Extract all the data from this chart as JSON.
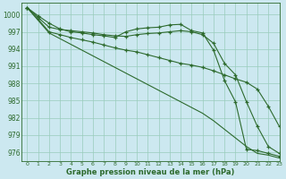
{
  "background_color": "#cce8f0",
  "grid_color": "#99ccbb",
  "line_color": "#2d6a2d",
  "title": "Graphe pression niveau de la mer (hPa)",
  "ylim": [
    974.5,
    1002
  ],
  "xlim": [
    -0.5,
    23
  ],
  "yticks": [
    976,
    979,
    982,
    985,
    988,
    991,
    994,
    997,
    1000
  ],
  "xticks": [
    0,
    1,
    2,
    3,
    4,
    5,
    6,
    7,
    8,
    9,
    10,
    11,
    12,
    13,
    14,
    15,
    16,
    17,
    18,
    19,
    20,
    21,
    22,
    23
  ],
  "series": [
    {
      "x": [
        0,
        1,
        2,
        3,
        4,
        5,
        6,
        7,
        8,
        9,
        10,
        11,
        12,
        13,
        14,
        15,
        16,
        17,
        18,
        19,
        20,
        21,
        22,
        23
      ],
      "y": [
        1001.2,
        999.8,
        998.5,
        997.5,
        997.0,
        996.8,
        996.5,
        996.3,
        996.0,
        997.0,
        997.5,
        997.7,
        997.8,
        998.2,
        998.3,
        997.2,
        996.8,
        993.8,
        988.5,
        984.8,
        976.5,
        976.3,
        975.8,
        975.3
      ],
      "marker": true
    },
    {
      "x": [
        0,
        1,
        2,
        3,
        4,
        5,
        6,
        7,
        8,
        9,
        10,
        11,
        12,
        13,
        14,
        15,
        16,
        17,
        18,
        19,
        20,
        21,
        22,
        23
      ],
      "y": [
        1001.2,
        999.5,
        997.8,
        997.4,
        997.2,
        997.0,
        996.8,
        996.5,
        996.3,
        996.2,
        996.5,
        996.7,
        996.8,
        997.0,
        997.2,
        997.0,
        996.5,
        995.0,
        991.5,
        989.5,
        984.8,
        980.5,
        977.0,
        975.8
      ],
      "marker": true
    },
    {
      "x": [
        0,
        1,
        2,
        3,
        4,
        5,
        6,
        7,
        8,
        9,
        10,
        11,
        12,
        13,
        14,
        15,
        16,
        17,
        18,
        19,
        20,
        21,
        22,
        23
      ],
      "y": [
        1001.2,
        999.2,
        997.0,
        996.5,
        996.0,
        995.6,
        995.2,
        994.7,
        994.2,
        993.8,
        993.5,
        993.0,
        992.5,
        992.0,
        991.5,
        991.2,
        990.8,
        990.2,
        989.5,
        988.8,
        988.2,
        987.0,
        984.0,
        980.5
      ],
      "marker": true
    },
    {
      "x": [
        0,
        1,
        2,
        3,
        4,
        5,
        6,
        7,
        8,
        9,
        10,
        11,
        12,
        13,
        14,
        15,
        16,
        17,
        18,
        19,
        20,
        21,
        22,
        23
      ],
      "y": [
        1001.2,
        999.0,
        996.8,
        995.8,
        994.8,
        993.8,
        992.8,
        991.8,
        990.8,
        989.8,
        988.8,
        987.8,
        986.8,
        985.8,
        984.8,
        983.8,
        982.8,
        981.5,
        980.0,
        978.5,
        977.0,
        975.8,
        975.5,
        975.0
      ],
      "marker": false
    }
  ]
}
